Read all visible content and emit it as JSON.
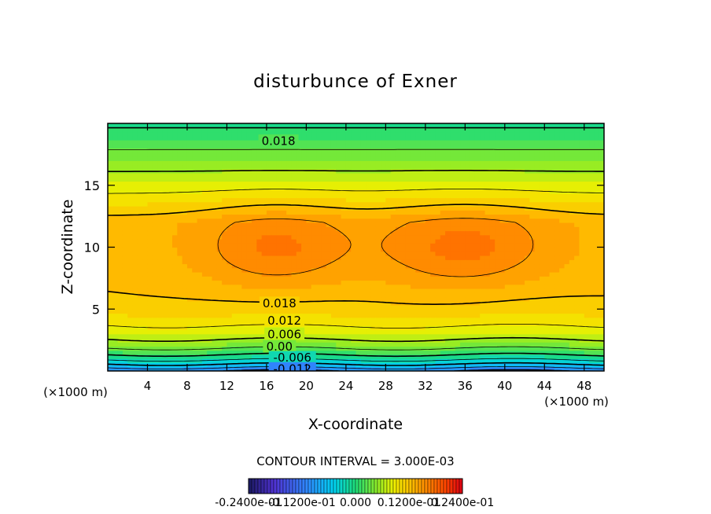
{
  "chart_data": {
    "type": "heatmap",
    "title": "disturbunce of Exner",
    "xlabel": "X-coordinate",
    "ylabel": "Z-coordinate",
    "x_unit": "(×1000 m)",
    "y_unit": "(×1000 m)",
    "xlim": [
      0,
      50
    ],
    "ylim": [
      0,
      20
    ],
    "x_ticks": [
      4,
      8,
      12,
      16,
      20,
      24,
      28,
      32,
      36,
      40,
      44,
      48
    ],
    "y_ticks": [
      5,
      10,
      15
    ],
    "contour_interval_label": "CONTOUR INTERVAL = 3.000E-03",
    "contour_labels": [
      {
        "text": "0.018",
        "x": 17.2,
        "y": 18.6
      },
      {
        "text": "0.018",
        "x": 17.3,
        "y": 5.5
      },
      {
        "text": "0.012",
        "x": 17.8,
        "y": 4.1
      },
      {
        "text": "0.006",
        "x": 17.8,
        "y": 3.0
      },
      {
        "text": "0.00",
        "x": 17.3,
        "y": 2.0
      },
      {
        "text": "-0.006",
        "x": 18.6,
        "y": 1.1
      },
      {
        "text": "-0.012",
        "x": 18.6,
        "y": 0.2
      }
    ],
    "colorbar": {
      "min": -0.024,
      "max": 0.024,
      "tick_labels": [
        "-0.2400e-01",
        "-0.1200e-01",
        "0.000",
        "0.1200e-01",
        "0.2400e-01"
      ]
    }
  }
}
